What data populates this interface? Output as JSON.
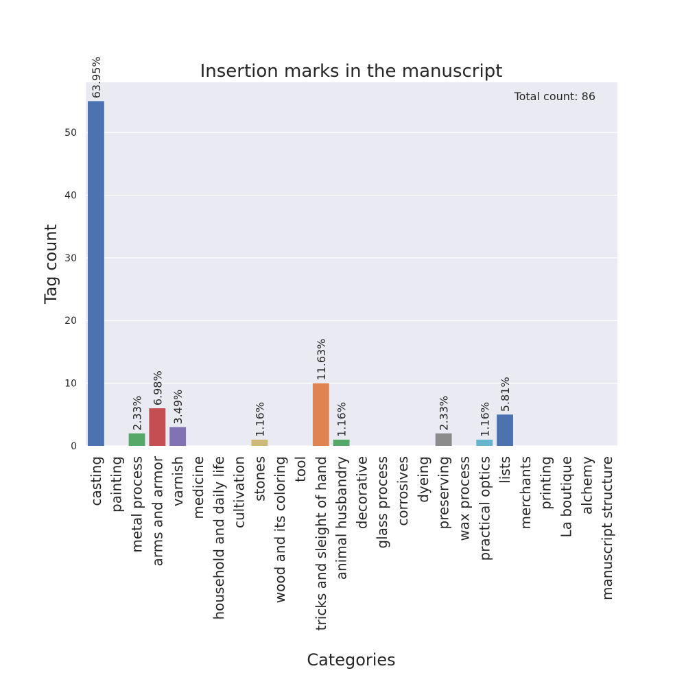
{
  "chart_data": {
    "type": "bar",
    "title": "Insertion marks in the manuscript",
    "xlabel": "Categories",
    "ylabel": "Tag count",
    "ylim": [
      0,
      58
    ],
    "yticks": [
      0,
      10,
      20,
      30,
      40,
      50
    ],
    "grid": true,
    "annotation": "Total count: 86",
    "categories": [
      "casting",
      "painting",
      "metal process",
      "arms and armor",
      "varnish",
      "medicine",
      "household and daily life",
      "cultivation",
      "stones",
      "wood and its coloring",
      "tool",
      "tricks and sleight of hand",
      "animal husbandry",
      "decorative",
      "glass process",
      "corrosives",
      "dyeing",
      "preserving",
      "wax process",
      "practical optics",
      "lists",
      "merchants",
      "printing",
      "La boutique",
      "alchemy",
      "manuscript structure"
    ],
    "values": [
      55,
      0,
      2,
      6,
      3,
      0,
      0,
      0,
      1,
      0,
      0,
      10,
      1,
      0,
      0,
      0,
      0,
      2,
      0,
      1,
      5,
      0,
      0,
      0,
      0,
      0
    ],
    "data_labels": [
      "63.95%",
      "",
      "2.33%",
      "6.98%",
      "3.49%",
      "",
      "",
      "",
      "1.16%",
      "",
      "",
      "11.63%",
      "1.16%",
      "",
      "",
      "",
      "",
      "2.33%",
      "",
      "1.16%",
      "5.81%",
      "",
      "",
      "",
      "",
      ""
    ],
    "colors": [
      "#4c72b0",
      "#dd8452",
      "#55a868",
      "#c44e52",
      "#8172b3",
      "#937860",
      "#da8bc3",
      "#8c8c8c",
      "#ccb974",
      "#64b5cd",
      "#4c72b0",
      "#dd8452",
      "#55a868",
      "#c44e52",
      "#8172b3",
      "#937860",
      "#da8bc3",
      "#8c8c8c",
      "#ccb974",
      "#64b5cd",
      "#4c72b0",
      "#dd8452",
      "#55a868",
      "#c44e52",
      "#8172b3",
      "#937860"
    ],
    "plot_background": "#eaeaf2",
    "grid_color": "#ffffff"
  }
}
